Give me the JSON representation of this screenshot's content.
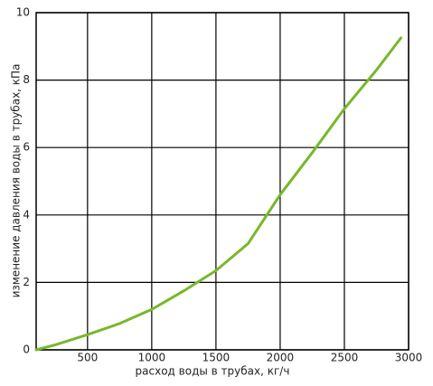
{
  "chart_data": {
    "type": "line",
    "x_label": "расход воды в трубах, кг/ч",
    "y_label": "изменение давления воды в трубах, кПа",
    "x": [
      100,
      250,
      500,
      750,
      1000,
      1250,
      1500,
      1750,
      2000,
      2250,
      2500,
      2750,
      2940
    ],
    "series": [
      {
        "color": "#77b82a",
        "values": [
          0,
          0.15,
          0.45,
          0.78,
          1.2,
          1.75,
          2.35,
          3.15,
          4.6,
          5.85,
          7.15,
          8.3,
          9.25
        ]
      }
    ],
    "xlim": [
      100,
      3000
    ],
    "xticks": [
      500,
      1000,
      1500,
      2000,
      2500,
      3000
    ],
    "ylim": [
      0,
      10
    ],
    "yticks": [
      0,
      2,
      4,
      6,
      8,
      10
    ],
    "grid": true
  }
}
